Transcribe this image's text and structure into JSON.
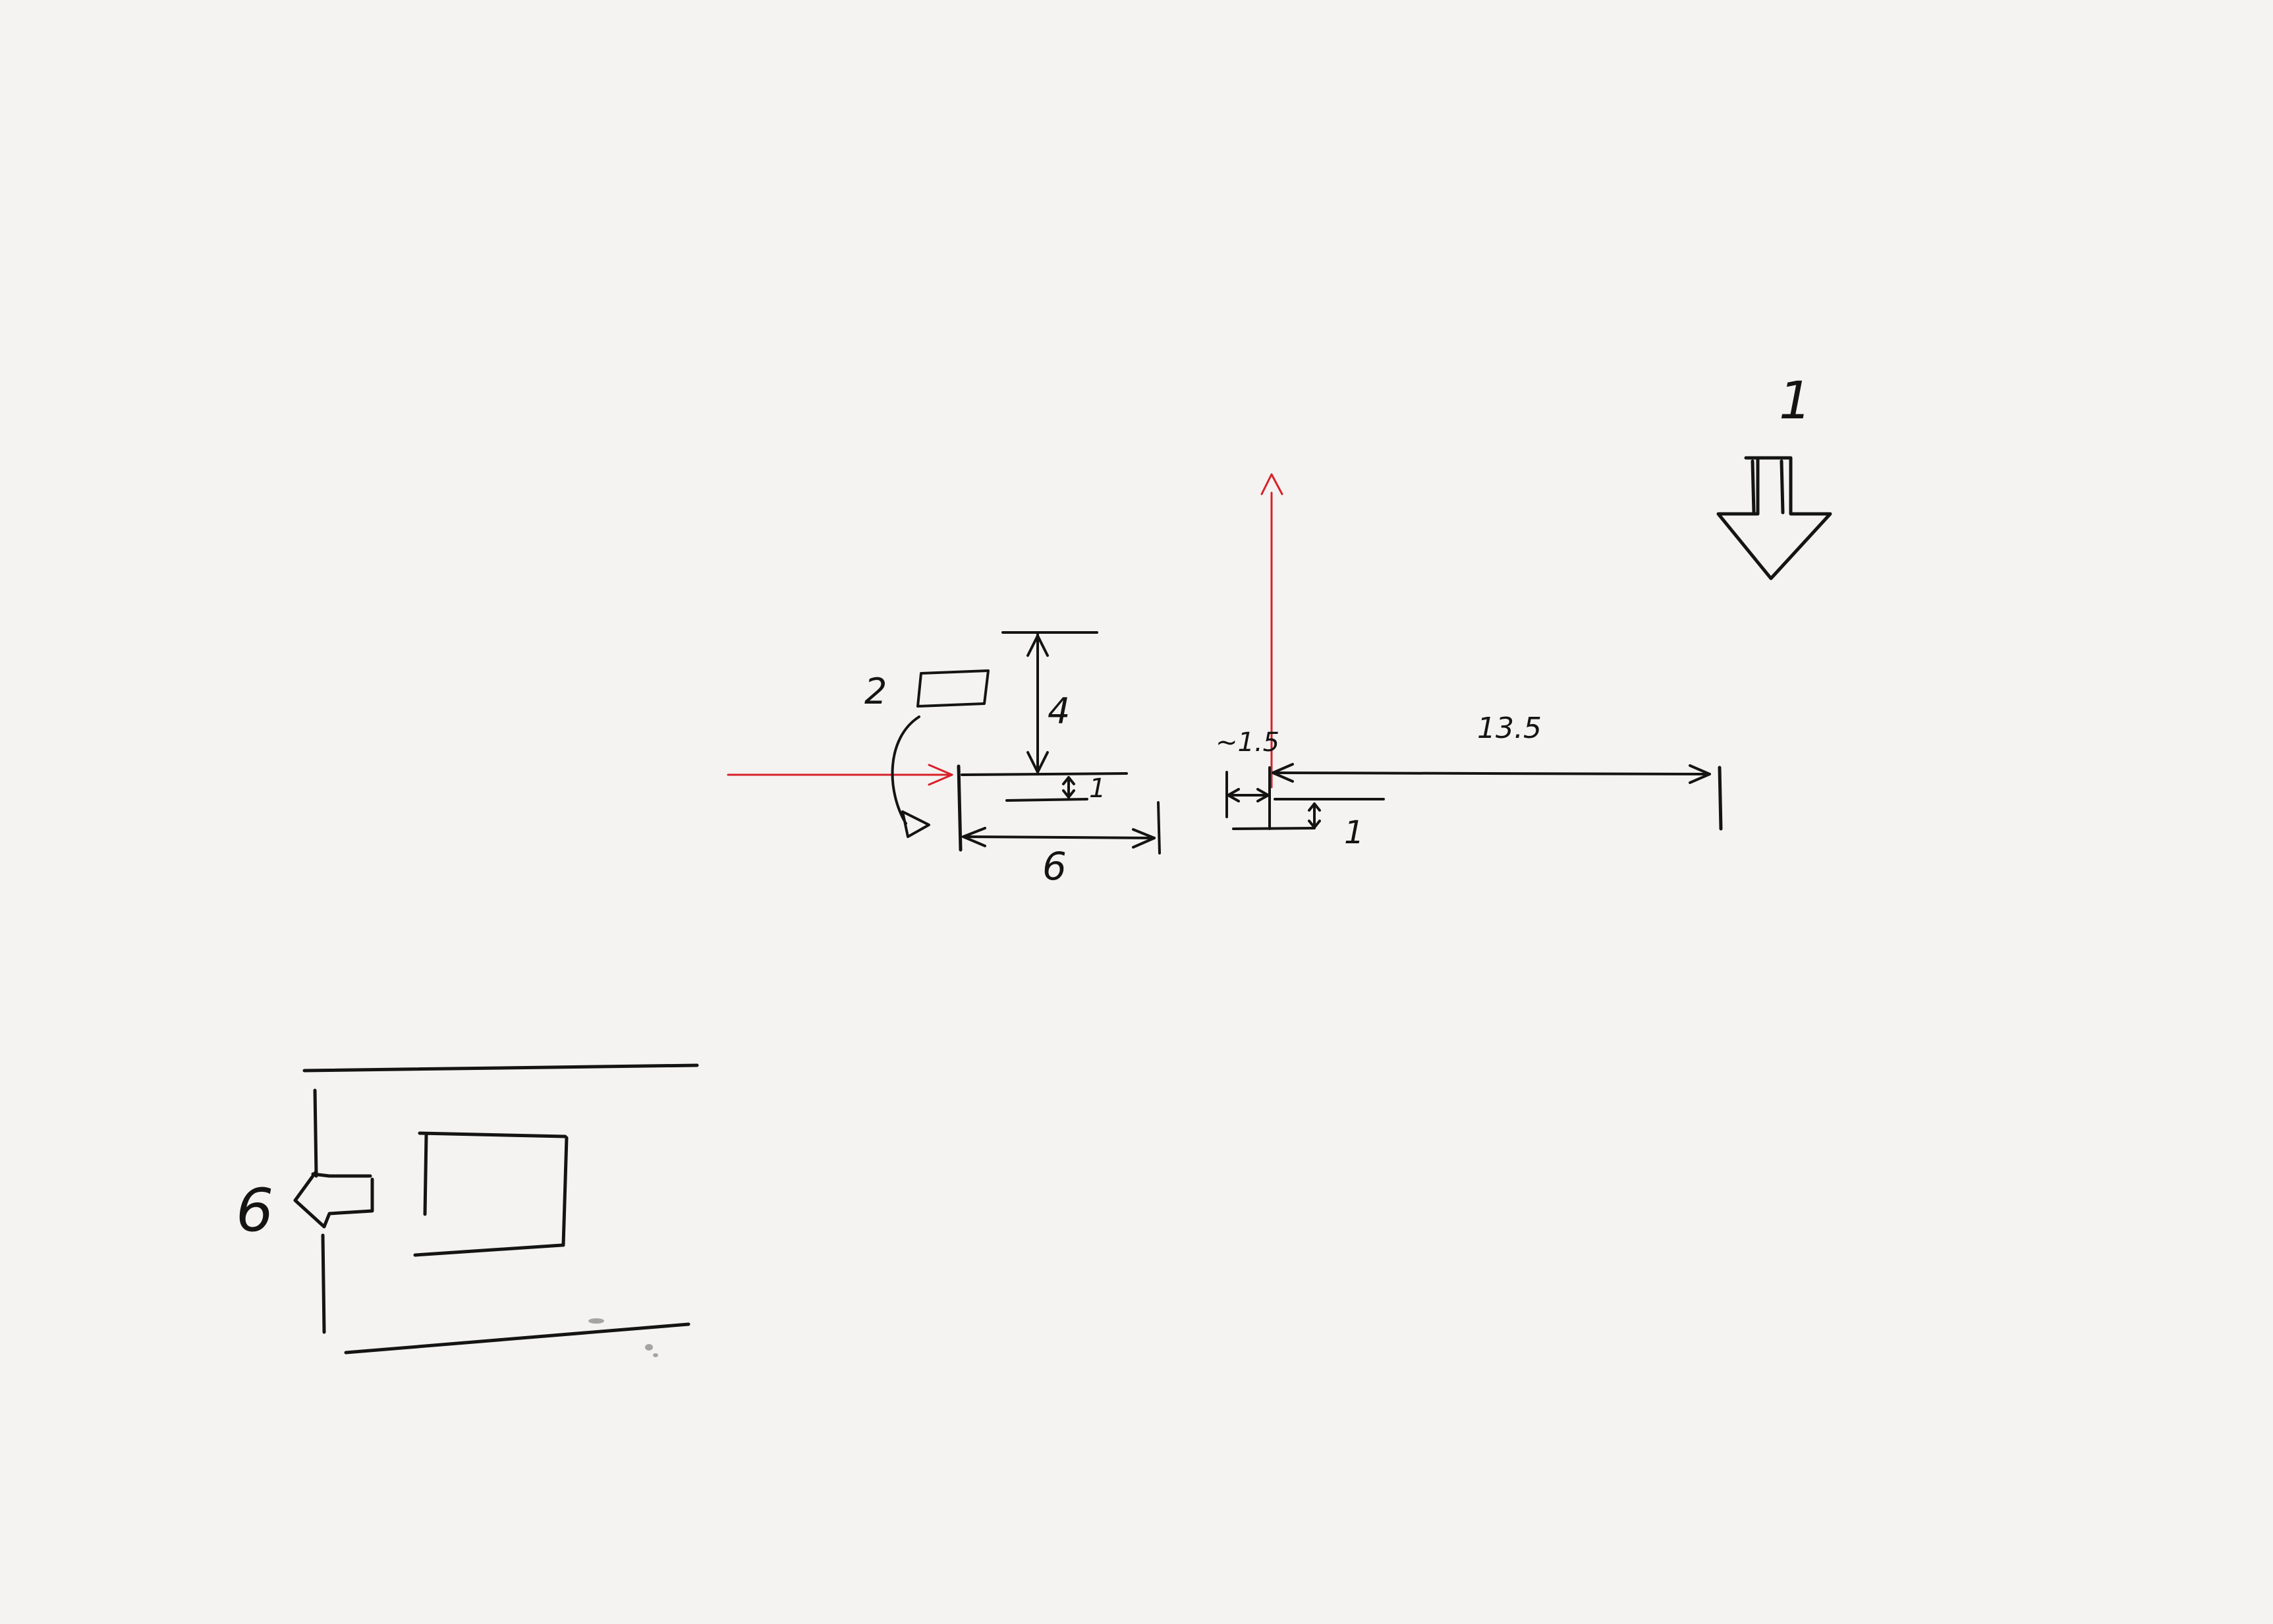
{
  "labels": {
    "marker_1": "1",
    "marker_2": "2",
    "marker_6": "6",
    "dim_4": "4",
    "dim_1_left": "1",
    "dim_6": "6",
    "dim_approx_1_5": "~1.5",
    "dim_13_5": "13.5",
    "dim_1_right": "1"
  },
  "colors": {
    "ink": "#141414",
    "red_ray": "#d8202a",
    "paper": "#f4f3f1"
  },
  "icons": {
    "down_arrow": "down-block-arrow-icon",
    "left_arrow": "left-block-arrow-icon",
    "rotate_arrow": "curved-rotate-arrow-icon"
  }
}
